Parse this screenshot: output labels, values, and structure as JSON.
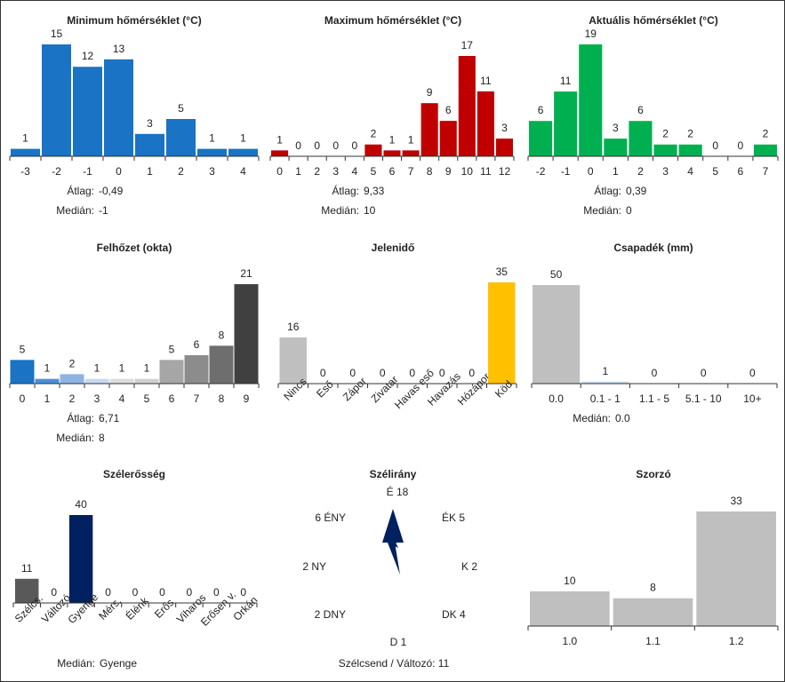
{
  "colors": {
    "blue": "#1a73c4",
    "red": "#c00000",
    "green": "#00b050",
    "gray": "#bfbfbf",
    "yellow": "#ffc000",
    "navy": "#002060"
  },
  "chart_data": [
    {
      "type": "bar",
      "title": "Minimum hőmérséklet (°C)",
      "categories": [
        "-3",
        "-2",
        "-1",
        "0",
        "1",
        "2",
        "3",
        "4"
      ],
      "values": [
        1,
        15,
        12,
        13,
        3,
        5,
        1,
        1
      ],
      "colors": [
        "#1a73c4"
      ],
      "stats": [
        {
          "label": "Átlag:",
          "value": "-0,49"
        },
        {
          "label": "Medián:",
          "value": "-1"
        }
      ]
    },
    {
      "type": "bar",
      "title": "Maximum hőmérséklet (°C)",
      "categories": [
        "0",
        "1",
        "2",
        "3",
        "4",
        "5",
        "6",
        "7",
        "8",
        "9",
        "10",
        "11",
        "12"
      ],
      "values": [
        1,
        0,
        0,
        0,
        0,
        2,
        1,
        1,
        9,
        6,
        17,
        11,
        3
      ],
      "colors": [
        "#c00000"
      ],
      "stats": [
        {
          "label": "Átlag:",
          "value": "9,33"
        },
        {
          "label": "Medián:",
          "value": "10"
        }
      ]
    },
    {
      "type": "bar",
      "title": "Aktuális hőmérséklet (°C)",
      "categories": [
        "-2",
        "-1",
        "0",
        "1",
        "2",
        "3",
        "4",
        "5",
        "6",
        "7"
      ],
      "values": [
        6,
        11,
        19,
        3,
        6,
        2,
        2,
        0,
        0,
        2
      ],
      "colors": [
        "#00b050"
      ],
      "stats": [
        {
          "label": "Átlag:",
          "value": "0,39"
        },
        {
          "label": "Medián:",
          "value": "0"
        }
      ]
    },
    {
      "type": "bar",
      "title": "Felhőzet (okta)",
      "categories": [
        "0",
        "1",
        "2",
        "3",
        "4",
        "5",
        "6",
        "7",
        "8",
        "9"
      ],
      "values": [
        5,
        1,
        2,
        1,
        1,
        1,
        5,
        6,
        8,
        21
      ],
      "colors": [
        "#1a73c4",
        "#4a8fd8",
        "#8fb4e3",
        "#c6d9f1",
        "#dcdcdc",
        "#d0d0d0",
        "#a6a6a6",
        "#8c8c8c",
        "#6e6e6e",
        "#404040"
      ],
      "stats": [
        {
          "label": "Átlag:",
          "value": "6,71"
        },
        {
          "label": "Medián:",
          "value": "8"
        }
      ]
    },
    {
      "type": "bar",
      "title": "Jelenidő",
      "categories": [
        "Nincs",
        "Eső",
        "Zápor",
        "Zivatar",
        "Havas eső",
        "Havazás",
        "Hózápor",
        "Köd"
      ],
      "values": [
        16,
        0,
        0,
        0,
        0,
        0,
        0,
        35
      ],
      "colors": [
        "#bfbfbf",
        "#bfbfbf",
        "#bfbfbf",
        "#bfbfbf",
        "#bfbfbf",
        "#bfbfbf",
        "#bfbfbf",
        "#ffc000"
      ],
      "rotated_labels": true,
      "stats": []
    },
    {
      "type": "bar",
      "title": "Csapadék (mm)",
      "categories": [
        "0.0",
        "0.1 - 1",
        "1.1 - 5",
        "5.1 - 10",
        "10+"
      ],
      "values": [
        50,
        1,
        0,
        0,
        0
      ],
      "colors": [
        "#bfbfbf",
        "#c6d9f1",
        "#bfbfbf",
        "#bfbfbf",
        "#bfbfbf"
      ],
      "stats": [
        {
          "label": "Medián:",
          "value": "0.0"
        }
      ]
    },
    {
      "type": "bar",
      "title": "Szélerősség",
      "categories": [
        "Szélcs.",
        "Változó",
        "Gyenge",
        "Mérs.",
        "Élénk",
        "Erős",
        "Viharos",
        "Erősen v.",
        "Orkán"
      ],
      "values": [
        11,
        0,
        40,
        0,
        0,
        0,
        0,
        0,
        0
      ],
      "colors": [
        "#595959",
        "#bfbfbf",
        "#002060",
        "#bfbfbf",
        "#bfbfbf",
        "#bfbfbf",
        "#bfbfbf",
        "#bfbfbf",
        "#bfbfbf"
      ],
      "rotated_labels": true,
      "stats": [
        {
          "label": "Medián:",
          "value": "Gyenge"
        }
      ]
    },
    {
      "type": "wind_rose",
      "title": "Szélirány",
      "directions": [
        {
          "name": "É",
          "count": 18
        },
        {
          "name": "ÉK",
          "count": 5
        },
        {
          "name": "K",
          "count": 2
        },
        {
          "name": "DK",
          "count": 4
        },
        {
          "name": "D",
          "count": 1
        },
        {
          "name": "DNY",
          "count": 2
        },
        {
          "name": "NY",
          "count": 2
        },
        {
          "name": "ÉNY",
          "count": 6
        }
      ],
      "footer": "Szélcsend / Változó: 11"
    },
    {
      "type": "bar",
      "title": "Szorzó",
      "categories": [
        "1.0",
        "1.1",
        "1.2"
      ],
      "values": [
        10,
        8,
        33
      ],
      "colors": [
        "#bfbfbf"
      ],
      "stats": []
    }
  ]
}
